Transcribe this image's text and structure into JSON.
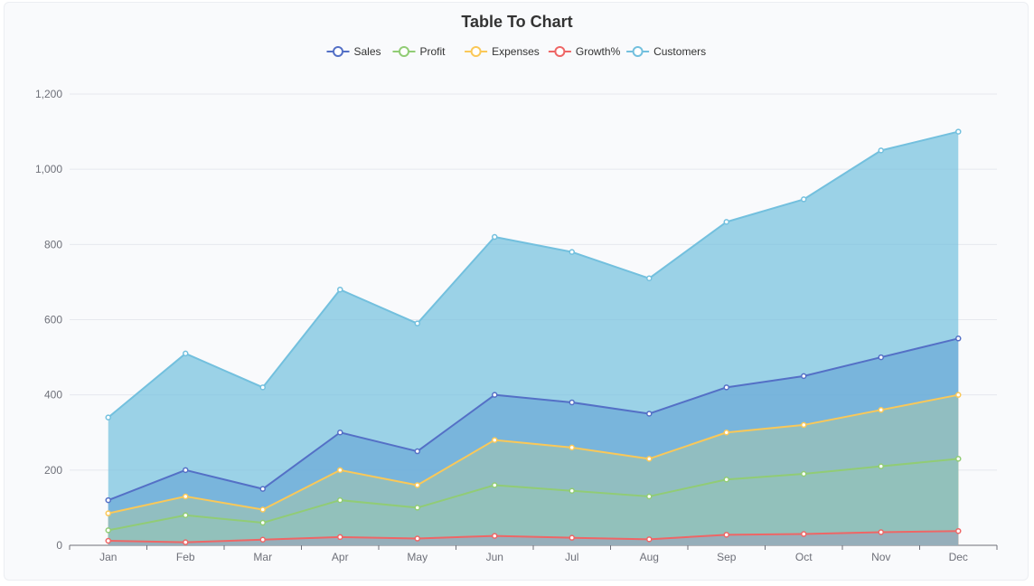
{
  "chart_data": {
    "type": "area",
    "title": "Table To Chart",
    "stacked": false,
    "categories": [
      "Jan",
      "Feb",
      "Mar",
      "Apr",
      "May",
      "Jun",
      "Jul",
      "Aug",
      "Sep",
      "Oct",
      "Nov",
      "Dec"
    ],
    "y_ticks": [
      "0",
      "200",
      "400",
      "600",
      "800",
      "1,000",
      "1,200"
    ],
    "ylim": [
      0,
      1200
    ],
    "grid": true,
    "legend_position": "top-center",
    "series": [
      {
        "name": "Sales",
        "color": "#5470c6",
        "values": [
          120,
          200,
          150,
          300,
          250,
          400,
          380,
          350,
          420,
          450,
          500,
          550
        ]
      },
      {
        "name": "Profit",
        "color": "#91cc75",
        "values": [
          40,
          80,
          60,
          120,
          100,
          160,
          145,
          130,
          175,
          190,
          210,
          230
        ]
      },
      {
        "name": "Expenses",
        "color": "#fac858",
        "values": [
          85,
          130,
          95,
          200,
          160,
          280,
          260,
          230,
          300,
          320,
          360,
          400
        ]
      },
      {
        "name": "Growth%",
        "color": "#ee6666",
        "values": [
          12,
          8,
          15,
          22,
          18,
          25,
          20,
          16,
          28,
          30,
          35,
          38
        ]
      },
      {
        "name": "Customers",
        "color": "#73c0de",
        "values": [
          340,
          510,
          420,
          680,
          590,
          820,
          780,
          710,
          860,
          920,
          1050,
          1100
        ]
      }
    ]
  }
}
